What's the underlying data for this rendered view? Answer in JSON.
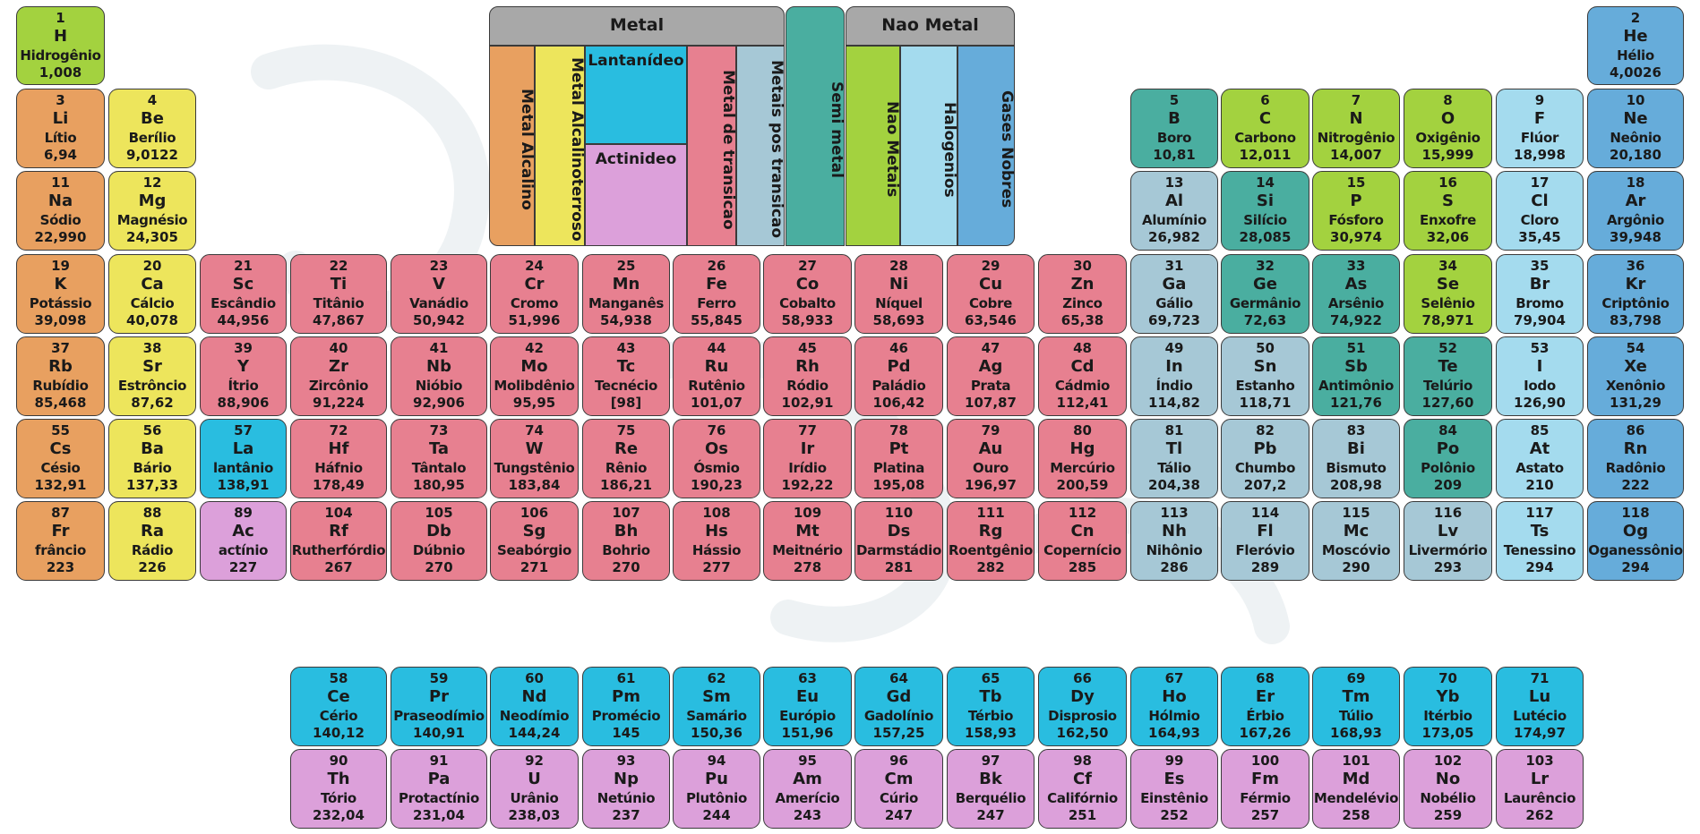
{
  "legend": {
    "metal_header": "Metal",
    "nonmetal_header": "Nao Metal",
    "alkali": "Metal Alcalino",
    "alkaline_earth": "Metal Alcalinoterroso",
    "lanthanide": "Lantanídeo",
    "actinide": "Actinideo",
    "transition": "Metal de transicao",
    "post_transition": "Metais pos transicao",
    "metalloid": "Semi metal",
    "nonmetal": "Nao Metais",
    "halogen": "Halogenios",
    "noble_gas": "Gases Nobres"
  },
  "colors": {
    "alkali": "#e8a060",
    "alkaline_earth": "#ede55c",
    "transition": "#e78090",
    "post_transition": "#a6c8d6",
    "metalloid": "#4aaea0",
    "nonmetal": "#a3d23f",
    "halogen": "#a4dbee",
    "noble_gas": "#66acda",
    "lanthanide": "#29bde0",
    "actinide": "#dca0da",
    "legend_header": "#a8a8a8"
  },
  "elements": [
    {
      "n": "1",
      "s": "H",
      "name": "Hidrogênio",
      "mass": "1,008",
      "row": 1,
      "col": 1,
      "cat": "nonmetal"
    },
    {
      "n": "2",
      "s": "He",
      "name": "Hélio",
      "mass": "4,0026",
      "row": 1,
      "col": 18,
      "cat": "noble"
    },
    {
      "n": "3",
      "s": "Li",
      "name": "Lítio",
      "mass": "6,94",
      "row": 2,
      "col": 1,
      "cat": "alkali"
    },
    {
      "n": "4",
      "s": "Be",
      "name": "Berílio",
      "mass": "9,0122",
      "row": 2,
      "col": 2,
      "cat": "alkaline"
    },
    {
      "n": "5",
      "s": "B",
      "name": "Boro",
      "mass": "10,81",
      "row": 2,
      "col": 13,
      "cat": "metalloid"
    },
    {
      "n": "6",
      "s": "C",
      "name": "Carbono",
      "mass": "12,011",
      "row": 2,
      "col": 14,
      "cat": "nonmetal"
    },
    {
      "n": "7",
      "s": "N",
      "name": "Nitrogênio",
      "mass": "14,007",
      "row": 2,
      "col": 15,
      "cat": "nonmetal"
    },
    {
      "n": "8",
      "s": "O",
      "name": "Oxigênio",
      "mass": "15,999",
      "row": 2,
      "col": 16,
      "cat": "nonmetal"
    },
    {
      "n": "9",
      "s": "F",
      "name": "Flúor",
      "mass": "18,998",
      "row": 2,
      "col": 17,
      "cat": "halogen"
    },
    {
      "n": "10",
      "s": "Ne",
      "name": "Neônio",
      "mass": "20,180",
      "row": 2,
      "col": 18,
      "cat": "noble"
    },
    {
      "n": "11",
      "s": "Na",
      "name": "Sódio",
      "mass": "22,990",
      "row": 3,
      "col": 1,
      "cat": "alkali"
    },
    {
      "n": "12",
      "s": "Mg",
      "name": "Magnésio",
      "mass": "24,305",
      "row": 3,
      "col": 2,
      "cat": "alkaline"
    },
    {
      "n": "13",
      "s": "Al",
      "name": "Alumínio",
      "mass": "26,982",
      "row": 3,
      "col": 13,
      "cat": "posttransition"
    },
    {
      "n": "14",
      "s": "Si",
      "name": "Silício",
      "mass": "28,085",
      "row": 3,
      "col": 14,
      "cat": "metalloid"
    },
    {
      "n": "15",
      "s": "P",
      "name": "Fósforo",
      "mass": "30,974",
      "row": 3,
      "col": 15,
      "cat": "nonmetal"
    },
    {
      "n": "16",
      "s": "S",
      "name": "Enxofre",
      "mass": "32,06",
      "row": 3,
      "col": 16,
      "cat": "nonmetal"
    },
    {
      "n": "17",
      "s": "Cl",
      "name": "Cloro",
      "mass": "35,45",
      "row": 3,
      "col": 17,
      "cat": "halogen"
    },
    {
      "n": "18",
      "s": "Ar",
      "name": "Argônio",
      "mass": "39,948",
      "row": 3,
      "col": 18,
      "cat": "noble"
    },
    {
      "n": "19",
      "s": "K",
      "name": "Potássio",
      "mass": "39,098",
      "row": 4,
      "col": 1,
      "cat": "alkali"
    },
    {
      "n": "20",
      "s": "Ca",
      "name": "Cálcio",
      "mass": "40,078",
      "row": 4,
      "col": 2,
      "cat": "alkaline"
    },
    {
      "n": "21",
      "s": "Sc",
      "name": "Escândio",
      "mass": "44,956",
      "row": 4,
      "col": 3,
      "cat": "transition"
    },
    {
      "n": "22",
      "s": "Ti",
      "name": "Titânio",
      "mass": "47,867",
      "row": 4,
      "col": 4,
      "cat": "transition"
    },
    {
      "n": "23",
      "s": "V",
      "name": "Vanádio",
      "mass": "50,942",
      "row": 4,
      "col": 5,
      "cat": "transition"
    },
    {
      "n": "24",
      "s": "Cr",
      "name": "Cromo",
      "mass": "51,996",
      "row": 4,
      "col": 6,
      "cat": "transition"
    },
    {
      "n": "25",
      "s": "Mn",
      "name": "Manganês",
      "mass": "54,938",
      "row": 4,
      "col": 7,
      "cat": "transition"
    },
    {
      "n": "26",
      "s": "Fe",
      "name": "Ferro",
      "mass": "55,845",
      "row": 4,
      "col": 8,
      "cat": "transition"
    },
    {
      "n": "27",
      "s": "Co",
      "name": "Cobalto",
      "mass": "58,933",
      "row": 4,
      "col": 9,
      "cat": "transition"
    },
    {
      "n": "28",
      "s": "Ni",
      "name": "Níquel",
      "mass": "58,693",
      "row": 4,
      "col": 10,
      "cat": "transition"
    },
    {
      "n": "29",
      "s": "Cu",
      "name": "Cobre",
      "mass": "63,546",
      "row": 4,
      "col": 11,
      "cat": "transition"
    },
    {
      "n": "30",
      "s": "Zn",
      "name": "Zinco",
      "mass": "65,38",
      "row": 4,
      "col": 12,
      "cat": "transition"
    },
    {
      "n": "31",
      "s": "Ga",
      "name": "Gálio",
      "mass": "69,723",
      "row": 4,
      "col": 13,
      "cat": "posttransition"
    },
    {
      "n": "32",
      "s": "Ge",
      "name": "Germânio",
      "mass": "72,63",
      "row": 4,
      "col": 14,
      "cat": "metalloid"
    },
    {
      "n": "33",
      "s": "As",
      "name": "Arsênio",
      "mass": "74,922",
      "row": 4,
      "col": 15,
      "cat": "metalloid"
    },
    {
      "n": "34",
      "s": "Se",
      "name": "Selênio",
      "mass": "78,971",
      "row": 4,
      "col": 16,
      "cat": "nonmetal"
    },
    {
      "n": "35",
      "s": "Br",
      "name": "Bromo",
      "mass": "79,904",
      "row": 4,
      "col": 17,
      "cat": "halogen"
    },
    {
      "n": "36",
      "s": "Kr",
      "name": "Criptônio",
      "mass": "83,798",
      "row": 4,
      "col": 18,
      "cat": "noble"
    },
    {
      "n": "37",
      "s": "Rb",
      "name": "Rubídio",
      "mass": "85,468",
      "row": 5,
      "col": 1,
      "cat": "alkali"
    },
    {
      "n": "38",
      "s": "Sr",
      "name": "Estrôncio",
      "mass": "87,62",
      "row": 5,
      "col": 2,
      "cat": "alkaline"
    },
    {
      "n": "39",
      "s": "Y",
      "name": "Ítrio",
      "mass": "88,906",
      "row": 5,
      "col": 3,
      "cat": "transition"
    },
    {
      "n": "40",
      "s": "Zr",
      "name": "Zircônio",
      "mass": "91,224",
      "row": 5,
      "col": 4,
      "cat": "transition"
    },
    {
      "n": "41",
      "s": "Nb",
      "name": "Nióbio",
      "mass": "92,906",
      "row": 5,
      "col": 5,
      "cat": "transition"
    },
    {
      "n": "42",
      "s": "Mo",
      "name": "Molibdênio",
      "mass": "95,95",
      "row": 5,
      "col": 6,
      "cat": "transition"
    },
    {
      "n": "43",
      "s": "Tc",
      "name": "Tecnécio",
      "mass": "[98]",
      "row": 5,
      "col": 7,
      "cat": "transition"
    },
    {
      "n": "44",
      "s": "Ru",
      "name": "Rutênio",
      "mass": "101,07",
      "row": 5,
      "col": 8,
      "cat": "transition"
    },
    {
      "n": "45",
      "s": "Rh",
      "name": "Ródio",
      "mass": "102,91",
      "row": 5,
      "col": 9,
      "cat": "transition"
    },
    {
      "n": "46",
      "s": "Pd",
      "name": "Paládio",
      "mass": "106,42",
      "row": 5,
      "col": 10,
      "cat": "transition"
    },
    {
      "n": "47",
      "s": "Ag",
      "name": "Prata",
      "mass": "107,87",
      "row": 5,
      "col": 11,
      "cat": "transition"
    },
    {
      "n": "48",
      "s": "Cd",
      "name": "Cádmio",
      "mass": "112,41",
      "row": 5,
      "col": 12,
      "cat": "transition"
    },
    {
      "n": "49",
      "s": "In",
      "name": "Índio",
      "mass": "114,82",
      "row": 5,
      "col": 13,
      "cat": "posttransition"
    },
    {
      "n": "50",
      "s": "Sn",
      "name": "Estanho",
      "mass": "118,71",
      "row": 5,
      "col": 14,
      "cat": "posttransition"
    },
    {
      "n": "51",
      "s": "Sb",
      "name": "Antimônio",
      "mass": "121,76",
      "row": 5,
      "col": 15,
      "cat": "metalloid"
    },
    {
      "n": "52",
      "s": "Te",
      "name": "Telúrio",
      "mass": "127,60",
      "row": 5,
      "col": 16,
      "cat": "metalloid"
    },
    {
      "n": "53",
      "s": "I",
      "name": "Iodo",
      "mass": "126,90",
      "row": 5,
      "col": 17,
      "cat": "halogen"
    },
    {
      "n": "54",
      "s": "Xe",
      "name": "Xenônio",
      "mass": "131,29",
      "row": 5,
      "col": 18,
      "cat": "noble"
    },
    {
      "n": "55",
      "s": "Cs",
      "name": "Césio",
      "mass": "132,91",
      "row": 6,
      "col": 1,
      "cat": "alkali"
    },
    {
      "n": "56",
      "s": "Ba",
      "name": "Bário",
      "mass": "137,33",
      "row": 6,
      "col": 2,
      "cat": "alkaline"
    },
    {
      "n": "57",
      "s": "La",
      "name": "lantânio",
      "mass": "138,91",
      "row": 6,
      "col": 3,
      "cat": "lanthanide"
    },
    {
      "n": "72",
      "s": "Hf",
      "name": "Háfnio",
      "mass": "178,49",
      "row": 6,
      "col": 4,
      "cat": "transition"
    },
    {
      "n": "73",
      "s": "Ta",
      "name": "Tântalo",
      "mass": "180,95",
      "row": 6,
      "col": 5,
      "cat": "transition"
    },
    {
      "n": "74",
      "s": "W",
      "name": "Tungstênio",
      "mass": "183,84",
      "row": 6,
      "col": 6,
      "cat": "transition"
    },
    {
      "n": "75",
      "s": "Re",
      "name": "Rênio",
      "mass": "186,21",
      "row": 6,
      "col": 7,
      "cat": "transition"
    },
    {
      "n": "76",
      "s": "Os",
      "name": "Ósmio",
      "mass": "190,23",
      "row": 6,
      "col": 8,
      "cat": "transition"
    },
    {
      "n": "77",
      "s": "Ir",
      "name": "Irídio",
      "mass": "192,22",
      "row": 6,
      "col": 9,
      "cat": "transition"
    },
    {
      "n": "78",
      "s": "Pt",
      "name": "Platina",
      "mass": "195,08",
      "row": 6,
      "col": 10,
      "cat": "transition"
    },
    {
      "n": "79",
      "s": "Au",
      "name": "Ouro",
      "mass": "196,97",
      "row": 6,
      "col": 11,
      "cat": "transition"
    },
    {
      "n": "80",
      "s": "Hg",
      "name": "Mercúrio",
      "mass": "200,59",
      "row": 6,
      "col": 12,
      "cat": "transition"
    },
    {
      "n": "81",
      "s": "Tl",
      "name": "Tálio",
      "mass": "204,38",
      "row": 6,
      "col": 13,
      "cat": "posttransition"
    },
    {
      "n": "82",
      "s": "Pb",
      "name": "Chumbo",
      "mass": "207,2",
      "row": 6,
      "col": 14,
      "cat": "posttransition"
    },
    {
      "n": "83",
      "s": "Bi",
      "name": "Bismuto",
      "mass": "208,98",
      "row": 6,
      "col": 15,
      "cat": "posttransition"
    },
    {
      "n": "84",
      "s": "Po",
      "name": "Polônio",
      "mass": "209",
      "row": 6,
      "col": 16,
      "cat": "metalloid"
    },
    {
      "n": "85",
      "s": "At",
      "name": "Astato",
      "mass": "210",
      "row": 6,
      "col": 17,
      "cat": "halogen"
    },
    {
      "n": "86",
      "s": "Rn",
      "name": "Radônio",
      "mass": "222",
      "row": 6,
      "col": 18,
      "cat": "noble"
    },
    {
      "n": "87",
      "s": "Fr",
      "name": "frâncio",
      "mass": "223",
      "row": 7,
      "col": 1,
      "cat": "alkali"
    },
    {
      "n": "88",
      "s": "Ra",
      "name": "Rádio",
      "mass": "226",
      "row": 7,
      "col": 2,
      "cat": "alkaline"
    },
    {
      "n": "89",
      "s": "Ac",
      "name": "actínio",
      "mass": "227",
      "row": 7,
      "col": 3,
      "cat": "actinide"
    },
    {
      "n": "104",
      "s": "Rf",
      "name": "Rutherfórdio",
      "mass": "267",
      "row": 7,
      "col": 4,
      "cat": "transition"
    },
    {
      "n": "105",
      "s": "Db",
      "name": "Dúbnio",
      "mass": "270",
      "row": 7,
      "col": 5,
      "cat": "transition"
    },
    {
      "n": "106",
      "s": "Sg",
      "name": "Seabórgio",
      "mass": "271",
      "row": 7,
      "col": 6,
      "cat": "transition"
    },
    {
      "n": "107",
      "s": "Bh",
      "name": "Bohrio",
      "mass": "270",
      "row": 7,
      "col": 7,
      "cat": "transition"
    },
    {
      "n": "108",
      "s": "Hs",
      "name": "Hássio",
      "mass": "277",
      "row": 7,
      "col": 8,
      "cat": "transition"
    },
    {
      "n": "109",
      "s": "Mt",
      "name": "Meitnério",
      "mass": "278",
      "row": 7,
      "col": 9,
      "cat": "transition"
    },
    {
      "n": "110",
      "s": "Ds",
      "name": "Darmstádio",
      "mass": "281",
      "row": 7,
      "col": 10,
      "cat": "transition"
    },
    {
      "n": "111",
      "s": "Rg",
      "name": "Roentgênio",
      "mass": "282",
      "row": 7,
      "col": 11,
      "cat": "transition"
    },
    {
      "n": "112",
      "s": "Cn",
      "name": "Copernício",
      "mass": "285",
      "row": 7,
      "col": 12,
      "cat": "transition"
    },
    {
      "n": "113",
      "s": "Nh",
      "name": "Nihônio",
      "mass": "286",
      "row": 7,
      "col": 13,
      "cat": "posttransition"
    },
    {
      "n": "114",
      "s": "Fl",
      "name": "Fleróvio",
      "mass": "289",
      "row": 7,
      "col": 14,
      "cat": "posttransition"
    },
    {
      "n": "115",
      "s": "Mc",
      "name": "Moscóvio",
      "mass": "290",
      "row": 7,
      "col": 15,
      "cat": "posttransition"
    },
    {
      "n": "116",
      "s": "Lv",
      "name": "Livermório",
      "mass": "293",
      "row": 7,
      "col": 16,
      "cat": "posttransition"
    },
    {
      "n": "117",
      "s": "Ts",
      "name": "Tenessino",
      "mass": "294",
      "row": 7,
      "col": 17,
      "cat": "halogen"
    },
    {
      "n": "118",
      "s": "Og",
      "name": "Oganessônio",
      "mass": "294",
      "row": 7,
      "col": 18,
      "cat": "noble"
    },
    {
      "n": "58",
      "s": "Ce",
      "name": "Cério",
      "mass": "140,12",
      "row": 8,
      "col": 4,
      "cat": "lanthanide"
    },
    {
      "n": "59",
      "s": "Pr",
      "name": "Praseodímio",
      "mass": "140,91",
      "row": 8,
      "col": 5,
      "cat": "lanthanide"
    },
    {
      "n": "60",
      "s": "Nd",
      "name": "Neodímio",
      "mass": "144,24",
      "row": 8,
      "col": 6,
      "cat": "lanthanide"
    },
    {
      "n": "61",
      "s": "Pm",
      "name": "Promécio",
      "mass": "145",
      "row": 8,
      "col": 7,
      "cat": "lanthanide"
    },
    {
      "n": "62",
      "s": "Sm",
      "name": "Samário",
      "mass": "150,36",
      "row": 8,
      "col": 8,
      "cat": "lanthanide"
    },
    {
      "n": "63",
      "s": "Eu",
      "name": "Európio",
      "mass": "151,96",
      "row": 8,
      "col": 9,
      "cat": "lanthanide"
    },
    {
      "n": "64",
      "s": "Gd",
      "name": "Gadolínio",
      "mass": "157,25",
      "row": 8,
      "col": 10,
      "cat": "lanthanide"
    },
    {
      "n": "65",
      "s": "Tb",
      "name": "Térbio",
      "mass": "158,93",
      "row": 8,
      "col": 11,
      "cat": "lanthanide"
    },
    {
      "n": "66",
      "s": "Dy",
      "name": "Disprosio",
      "mass": "162,50",
      "row": 8,
      "col": 12,
      "cat": "lanthanide"
    },
    {
      "n": "67",
      "s": "Ho",
      "name": "Hólmio",
      "mass": "164,93",
      "row": 8,
      "col": 13,
      "cat": "lanthanide"
    },
    {
      "n": "68",
      "s": "Er",
      "name": "Érbio",
      "mass": "167,26",
      "row": 8,
      "col": 14,
      "cat": "lanthanide"
    },
    {
      "n": "69",
      "s": "Tm",
      "name": "Túlio",
      "mass": "168,93",
      "row": 8,
      "col": 15,
      "cat": "lanthanide"
    },
    {
      "n": "70",
      "s": "Yb",
      "name": "Itérbio",
      "mass": "173,05",
      "row": 8,
      "col": 16,
      "cat": "lanthanide"
    },
    {
      "n": "71",
      "s": "Lu",
      "name": "Lutécio",
      "mass": "174,97",
      "row": 8,
      "col": 17,
      "cat": "lanthanide"
    },
    {
      "n": "90",
      "s": "Th",
      "name": "Tório",
      "mass": "232,04",
      "row": 9,
      "col": 4,
      "cat": "actinide"
    },
    {
      "n": "91",
      "s": "Pa",
      "name": "Protactínio",
      "mass": "231,04",
      "row": 9,
      "col": 5,
      "cat": "actinide"
    },
    {
      "n": "92",
      "s": "U",
      "name": "Urânio",
      "mass": "238,03",
      "row": 9,
      "col": 6,
      "cat": "actinide"
    },
    {
      "n": "93",
      "s": "Np",
      "name": "Netúnio",
      "mass": "237",
      "row": 9,
      "col": 7,
      "cat": "actinide"
    },
    {
      "n": "94",
      "s": "Pu",
      "name": "Plutônio",
      "mass": "244",
      "row": 9,
      "col": 8,
      "cat": "actinide"
    },
    {
      "n": "95",
      "s": "Am",
      "name": "Amerício",
      "mass": "243",
      "row": 9,
      "col": 9,
      "cat": "actinide"
    },
    {
      "n": "96",
      "s": "Cm",
      "name": "Cúrio",
      "mass": "247",
      "row": 9,
      "col": 10,
      "cat": "actinide"
    },
    {
      "n": "97",
      "s": "Bk",
      "name": "Berquélio",
      "mass": "247",
      "row": 9,
      "col": 11,
      "cat": "actinide"
    },
    {
      "n": "98",
      "s": "Cf",
      "name": "Califórnio",
      "mass": "251",
      "row": 9,
      "col": 12,
      "cat": "actinide"
    },
    {
      "n": "99",
      "s": "Es",
      "name": "Einstênio",
      "mass": "252",
      "row": 9,
      "col": 13,
      "cat": "actinide"
    },
    {
      "n": "100",
      "s": "Fm",
      "name": "Férmio",
      "mass": "257",
      "row": 9,
      "col": 14,
      "cat": "actinide"
    },
    {
      "n": "101",
      "s": "Md",
      "name": "Mendelévio",
      "mass": "258",
      "row": 9,
      "col": 15,
      "cat": "actinide"
    },
    {
      "n": "102",
      "s": "No",
      "name": "Nobélio",
      "mass": "259",
      "row": 9,
      "col": 16,
      "cat": "actinide"
    },
    {
      "n": "103",
      "s": "Lr",
      "name": "Laurêncio",
      "mass": "262",
      "row": 9,
      "col": 17,
      "cat": "actinide"
    }
  ]
}
